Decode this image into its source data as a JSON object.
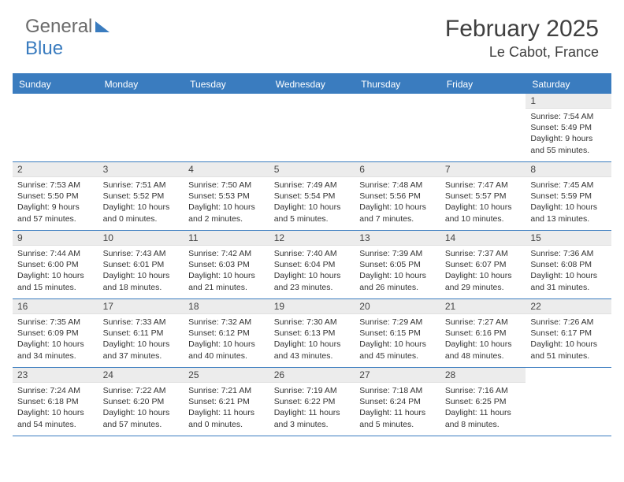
{
  "logo": {
    "text1": "General",
    "text2": "Blue"
  },
  "title": "February 2025",
  "location": "Le Cabot, France",
  "dayHeaders": [
    "Sunday",
    "Monday",
    "Tuesday",
    "Wednesday",
    "Thursday",
    "Friday",
    "Saturday"
  ],
  "colors": {
    "accent": "#3a7cbf",
    "headerBg": "#ececec",
    "text": "#333333"
  },
  "weeks": [
    [
      null,
      null,
      null,
      null,
      null,
      null,
      {
        "n": "1",
        "sr": "Sunrise: 7:54 AM",
        "ss": "Sunset: 5:49 PM",
        "d1": "Daylight: 9 hours",
        "d2": "and 55 minutes."
      }
    ],
    [
      {
        "n": "2",
        "sr": "Sunrise: 7:53 AM",
        "ss": "Sunset: 5:50 PM",
        "d1": "Daylight: 9 hours",
        "d2": "and 57 minutes."
      },
      {
        "n": "3",
        "sr": "Sunrise: 7:51 AM",
        "ss": "Sunset: 5:52 PM",
        "d1": "Daylight: 10 hours",
        "d2": "and 0 minutes."
      },
      {
        "n": "4",
        "sr": "Sunrise: 7:50 AM",
        "ss": "Sunset: 5:53 PM",
        "d1": "Daylight: 10 hours",
        "d2": "and 2 minutes."
      },
      {
        "n": "5",
        "sr": "Sunrise: 7:49 AM",
        "ss": "Sunset: 5:54 PM",
        "d1": "Daylight: 10 hours",
        "d2": "and 5 minutes."
      },
      {
        "n": "6",
        "sr": "Sunrise: 7:48 AM",
        "ss": "Sunset: 5:56 PM",
        "d1": "Daylight: 10 hours",
        "d2": "and 7 minutes."
      },
      {
        "n": "7",
        "sr": "Sunrise: 7:47 AM",
        "ss": "Sunset: 5:57 PM",
        "d1": "Daylight: 10 hours",
        "d2": "and 10 minutes."
      },
      {
        "n": "8",
        "sr": "Sunrise: 7:45 AM",
        "ss": "Sunset: 5:59 PM",
        "d1": "Daylight: 10 hours",
        "d2": "and 13 minutes."
      }
    ],
    [
      {
        "n": "9",
        "sr": "Sunrise: 7:44 AM",
        "ss": "Sunset: 6:00 PM",
        "d1": "Daylight: 10 hours",
        "d2": "and 15 minutes."
      },
      {
        "n": "10",
        "sr": "Sunrise: 7:43 AM",
        "ss": "Sunset: 6:01 PM",
        "d1": "Daylight: 10 hours",
        "d2": "and 18 minutes."
      },
      {
        "n": "11",
        "sr": "Sunrise: 7:42 AM",
        "ss": "Sunset: 6:03 PM",
        "d1": "Daylight: 10 hours",
        "d2": "and 21 minutes."
      },
      {
        "n": "12",
        "sr": "Sunrise: 7:40 AM",
        "ss": "Sunset: 6:04 PM",
        "d1": "Daylight: 10 hours",
        "d2": "and 23 minutes."
      },
      {
        "n": "13",
        "sr": "Sunrise: 7:39 AM",
        "ss": "Sunset: 6:05 PM",
        "d1": "Daylight: 10 hours",
        "d2": "and 26 minutes."
      },
      {
        "n": "14",
        "sr": "Sunrise: 7:37 AM",
        "ss": "Sunset: 6:07 PM",
        "d1": "Daylight: 10 hours",
        "d2": "and 29 minutes."
      },
      {
        "n": "15",
        "sr": "Sunrise: 7:36 AM",
        "ss": "Sunset: 6:08 PM",
        "d1": "Daylight: 10 hours",
        "d2": "and 31 minutes."
      }
    ],
    [
      {
        "n": "16",
        "sr": "Sunrise: 7:35 AM",
        "ss": "Sunset: 6:09 PM",
        "d1": "Daylight: 10 hours",
        "d2": "and 34 minutes."
      },
      {
        "n": "17",
        "sr": "Sunrise: 7:33 AM",
        "ss": "Sunset: 6:11 PM",
        "d1": "Daylight: 10 hours",
        "d2": "and 37 minutes."
      },
      {
        "n": "18",
        "sr": "Sunrise: 7:32 AM",
        "ss": "Sunset: 6:12 PM",
        "d1": "Daylight: 10 hours",
        "d2": "and 40 minutes."
      },
      {
        "n": "19",
        "sr": "Sunrise: 7:30 AM",
        "ss": "Sunset: 6:13 PM",
        "d1": "Daylight: 10 hours",
        "d2": "and 43 minutes."
      },
      {
        "n": "20",
        "sr": "Sunrise: 7:29 AM",
        "ss": "Sunset: 6:15 PM",
        "d1": "Daylight: 10 hours",
        "d2": "and 45 minutes."
      },
      {
        "n": "21",
        "sr": "Sunrise: 7:27 AM",
        "ss": "Sunset: 6:16 PM",
        "d1": "Daylight: 10 hours",
        "d2": "and 48 minutes."
      },
      {
        "n": "22",
        "sr": "Sunrise: 7:26 AM",
        "ss": "Sunset: 6:17 PM",
        "d1": "Daylight: 10 hours",
        "d2": "and 51 minutes."
      }
    ],
    [
      {
        "n": "23",
        "sr": "Sunrise: 7:24 AM",
        "ss": "Sunset: 6:18 PM",
        "d1": "Daylight: 10 hours",
        "d2": "and 54 minutes."
      },
      {
        "n": "24",
        "sr": "Sunrise: 7:22 AM",
        "ss": "Sunset: 6:20 PM",
        "d1": "Daylight: 10 hours",
        "d2": "and 57 minutes."
      },
      {
        "n": "25",
        "sr": "Sunrise: 7:21 AM",
        "ss": "Sunset: 6:21 PM",
        "d1": "Daylight: 11 hours",
        "d2": "and 0 minutes."
      },
      {
        "n": "26",
        "sr": "Sunrise: 7:19 AM",
        "ss": "Sunset: 6:22 PM",
        "d1": "Daylight: 11 hours",
        "d2": "and 3 minutes."
      },
      {
        "n": "27",
        "sr": "Sunrise: 7:18 AM",
        "ss": "Sunset: 6:24 PM",
        "d1": "Daylight: 11 hours",
        "d2": "and 5 minutes."
      },
      {
        "n": "28",
        "sr": "Sunrise: 7:16 AM",
        "ss": "Sunset: 6:25 PM",
        "d1": "Daylight: 11 hours",
        "d2": "and 8 minutes."
      },
      null
    ]
  ]
}
